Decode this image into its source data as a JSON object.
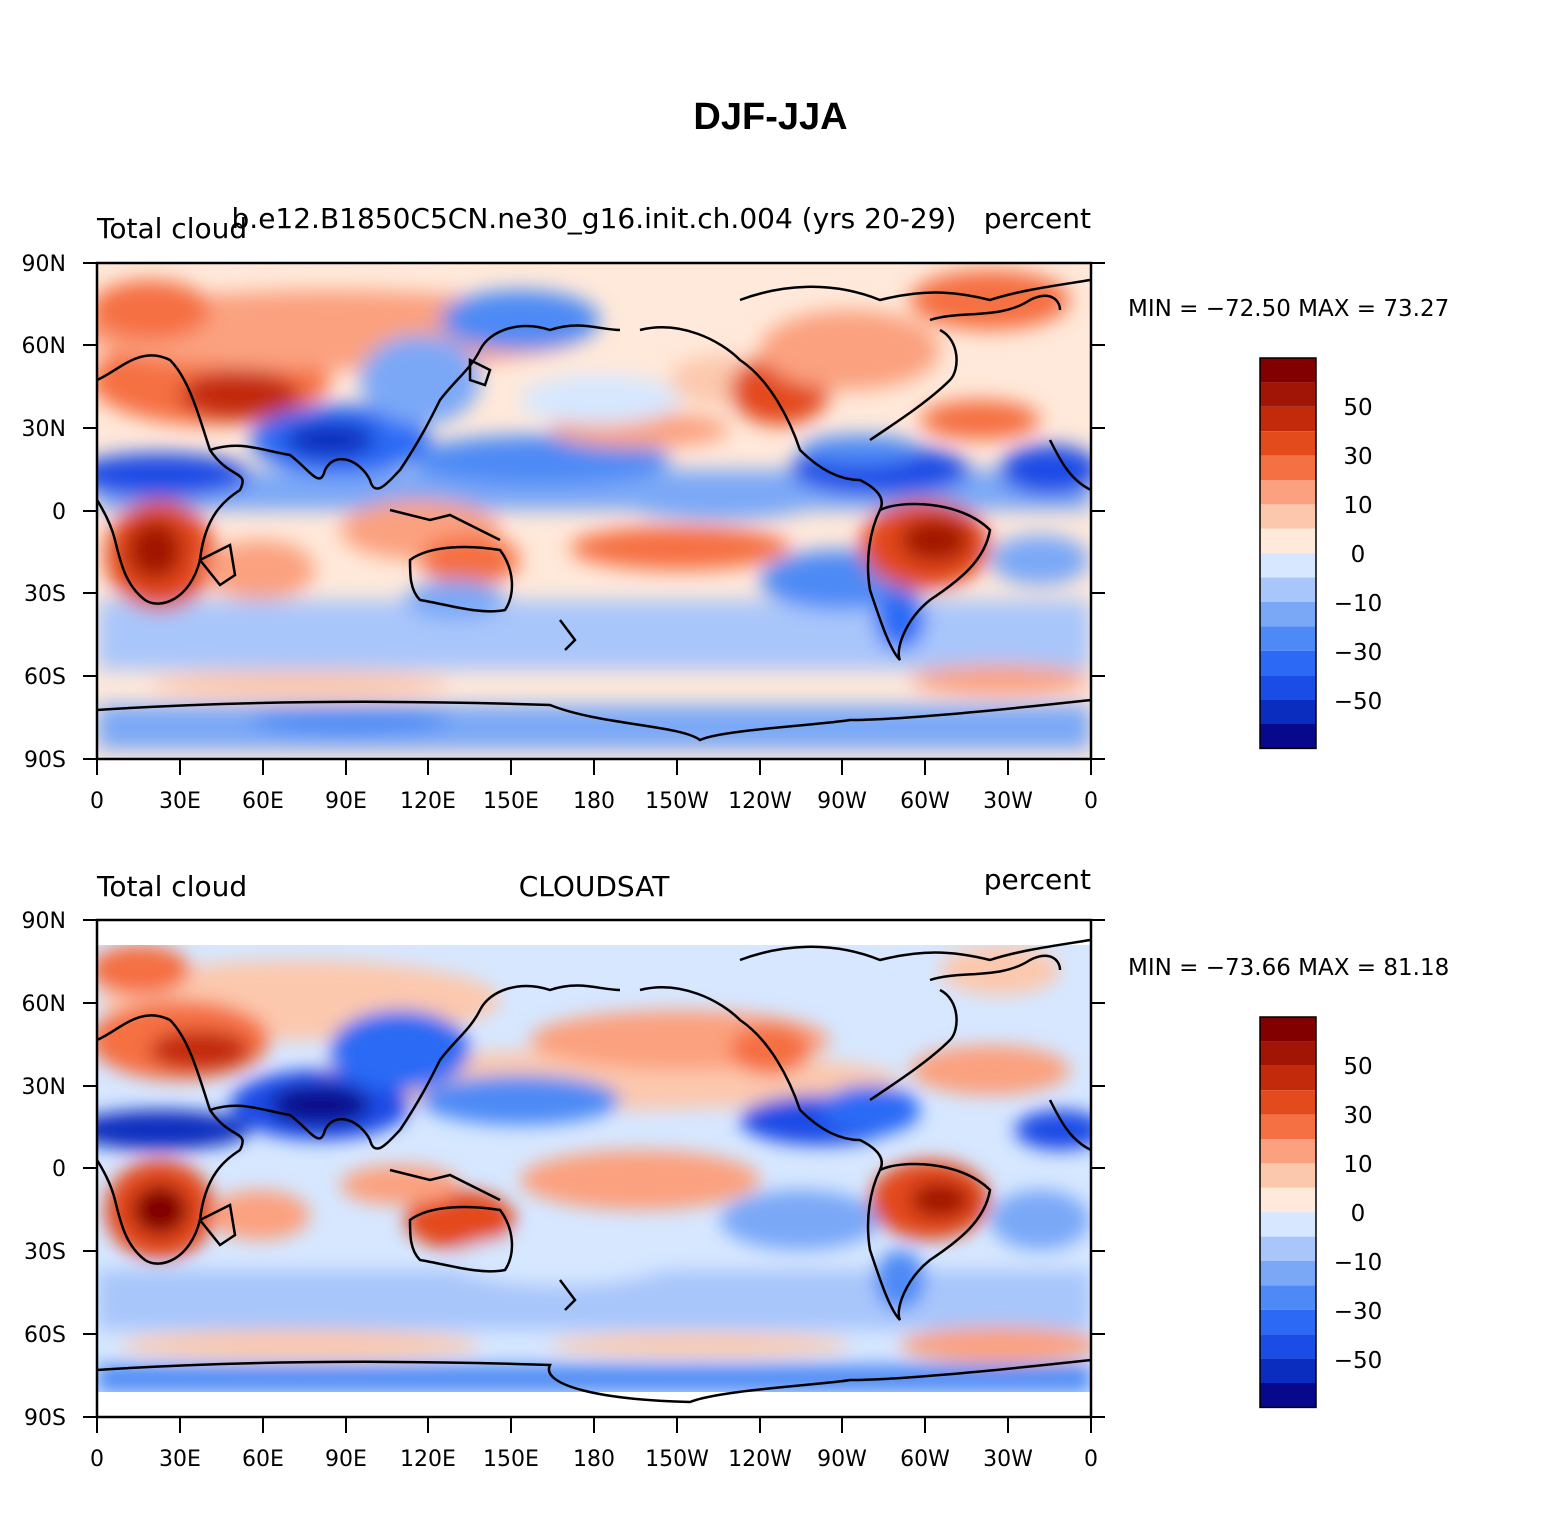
{
  "title": "DJF-JJA",
  "colors": {
    "levels": [
      "#08088c",
      "#0a2dbf",
      "#1a4ce6",
      "#2c6af5",
      "#4d8af5",
      "#7aa8f7",
      "#a9c6fb",
      "#d6e7ff",
      "#ffe9da",
      "#fcc8ad",
      "#fba17f",
      "#f57042",
      "#e34a1c",
      "#c22a0b",
      "#a11506",
      "#820000"
    ],
    "coast": "#000000"
  },
  "panels": [
    {
      "left_label": "Total cloud",
      "center_label": "b.e12.B1850C5CN.ne30_g16.init.ch.004 (yrs 20-29)",
      "right_label": "percent",
      "stats": "MIN = −72.50  MAX =   73.27",
      "lat_ticks": [
        "90N",
        "60N",
        "30N",
        "0",
        "30S",
        "60S",
        "90S"
      ],
      "lon_ticks": [
        "0",
        "30E",
        "60E",
        "90E",
        "120E",
        "150E",
        "180",
        "150W",
        "120W",
        "90W",
        "60W",
        "30W",
        "0"
      ],
      "colorbar_labels": [
        "50",
        "30",
        "10",
        "0",
        "−10",
        "−30",
        "−50"
      ]
    },
    {
      "left_label": "Total cloud",
      "center_label": "CLOUDSAT",
      "right_label": "percent",
      "stats": "MIN = −73.66  MAX =   81.18",
      "lat_ticks": [
        "90N",
        "60N",
        "30N",
        "0",
        "30S",
        "60S",
        "90S"
      ],
      "lon_ticks": [
        "0",
        "30E",
        "60E",
        "90E",
        "120E",
        "150E",
        "180",
        "150W",
        "120W",
        "90W",
        "60W",
        "30W",
        "0"
      ],
      "colorbar_labels": [
        "50",
        "30",
        "10",
        "0",
        "−10",
        "−30",
        "−50"
      ]
    }
  ]
}
